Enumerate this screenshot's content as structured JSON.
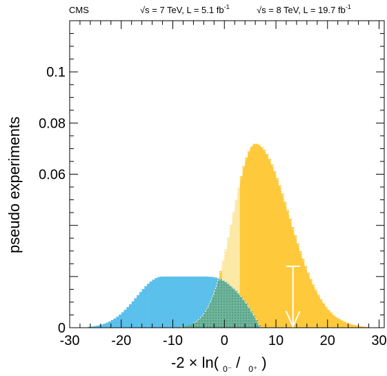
{
  "header": {
    "experiment": "CMS",
    "energy_7": "√s = 7 TeV, L = 5.1 fb",
    "energy_8": "√s = 8 TeV, L = 19.7 fb",
    "lumi_exp": "-1"
  },
  "colors": {
    "hyp_0minus": "#5bc0eb",
    "hyp_0plus": "#fec93b",
    "hyp_0plus_light": "#fde9a6",
    "overlap": "#6fb59a",
    "observed": "#ffffff"
  },
  "chart_data": {
    "type": "histogram",
    "xlabel": "-2 × ln(",
    "xlabel_sub1": "0⁻",
    "xlabel_slash": "/",
    "xlabel_sub2": "0⁺",
    "xlabel_close": ")",
    "ylabel": "pseudo experiments",
    "xlim": [
      -30,
      31
    ],
    "ylim": [
      0,
      0.12
    ],
    "x_ticks": [
      -30,
      -20,
      -10,
      0,
      10,
      20,
      30
    ],
    "y_ticks": [
      0,
      0.06,
      0.08,
      0.1
    ],
    "y_tick_labels": [
      "0",
      "0.06",
      "0.08",
      "0.1"
    ],
    "bin_width": 0.5,
    "series": [
      {
        "hypothesis": "0-",
        "shape": "plateau",
        "rise_center": -15,
        "rise_width": 5,
        "plateau_start": -12,
        "plateau_end": -3,
        "plateau_height": 0.02,
        "fall_end": 7
      },
      {
        "hypothesis": "0+",
        "shape": "skewed-gaussian",
        "peak_x": 6,
        "peak_y": 0.072,
        "sigma_left": 4.4,
        "sigma_right": 6.6,
        "pale_zone": [
          -0.5,
          3
        ]
      }
    ],
    "observed": {
      "x": 13.3,
      "y_top": 0.024
    }
  }
}
